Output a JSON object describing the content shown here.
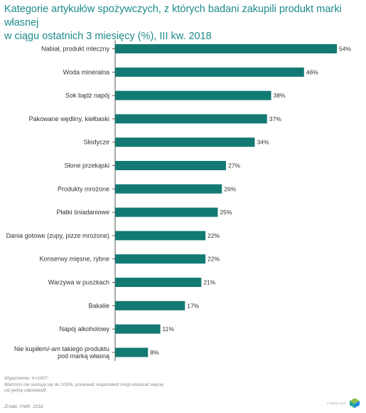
{
  "title_lines": [
    "Kategorie artykułów spożywczych, z których badani zakupili produkt marki własnej",
    "w ciągu ostatnich 3 miesięcy (%), III kw. 2018"
  ],
  "notes": [
    "Wyjaśnienie: n=1007.",
    "Wartości nie sumują się do 100%, ponieważ respondent mógł wskazać więcej",
    "niż jedną odpowiedź."
  ],
  "source": "Źródło: PMR, 2018",
  "logo_text": "insights pmr",
  "colors": {
    "bar": "#137a73",
    "title": "#1d8a8a",
    "axis": "#555555"
  },
  "chart_data": {
    "type": "bar",
    "orientation": "horizontal",
    "title": "Kategorie artykułów spożywczych, z których badani zakupili produkt marki własnej w ciągu ostatnich 3 miesięcy (%), III kw. 2018",
    "categories": [
      [
        "Nabiał, produkt mleczny"
      ],
      [
        "Woda mineralna"
      ],
      [
        "Sok bądź napój"
      ],
      [
        "Pakowane wędliny, kiełbaski"
      ],
      [
        "Słodycze"
      ],
      [
        "Słone przekąski"
      ],
      [
        "Produkty mrożone"
      ],
      [
        "Płatki śniadaniowe"
      ],
      [
        "Dania gotowe (zupy, pizze mrożone)"
      ],
      [
        "Konserwy mięsne, rybne"
      ],
      [
        "Warzywa w puszkach"
      ],
      [
        "Bakalie"
      ],
      [
        "Napój alkoholowy"
      ],
      [
        "Nie kupiłem/-am takiego produktu",
        "pod marką własną"
      ]
    ],
    "values": [
      54,
      46,
      38,
      37,
      34,
      27,
      26,
      25,
      22,
      22,
      21,
      17,
      11,
      8
    ],
    "value_labels": [
      "54%",
      "46%",
      "38%",
      "37%",
      "34%",
      "27%",
      "26%",
      "25%",
      "22%",
      "22%",
      "21%",
      "17%",
      "11%",
      "8%"
    ],
    "xlim": [
      0,
      54
    ],
    "grid": false,
    "legend": "none"
  }
}
